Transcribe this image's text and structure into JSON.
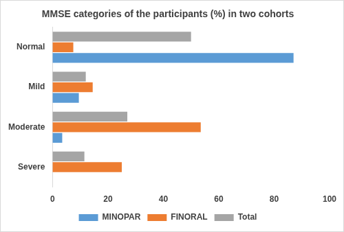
{
  "chart_data": {
    "type": "bar",
    "orientation": "horizontal",
    "title": "MMSE categories of the participants (%) in two cohorts",
    "categories": [
      "Normal",
      "Mild",
      "Moderate",
      "Severe"
    ],
    "series": [
      {
        "name": "MINOPAR",
        "color": "#5b9bd5",
        "values": [
          87,
          9.5,
          3.5,
          0
        ]
      },
      {
        "name": "FINORAL",
        "color": "#ed7d31",
        "values": [
          7.5,
          14.5,
          53.5,
          25
        ]
      },
      {
        "name": "Total",
        "color": "#a5a5a5",
        "values": [
          50,
          12,
          27,
          11.5
        ]
      }
    ],
    "xlim": [
      0,
      100
    ],
    "xticks": [
      0,
      20,
      40,
      60,
      80,
      100
    ],
    "grid": false,
    "legend": "bottom"
  }
}
